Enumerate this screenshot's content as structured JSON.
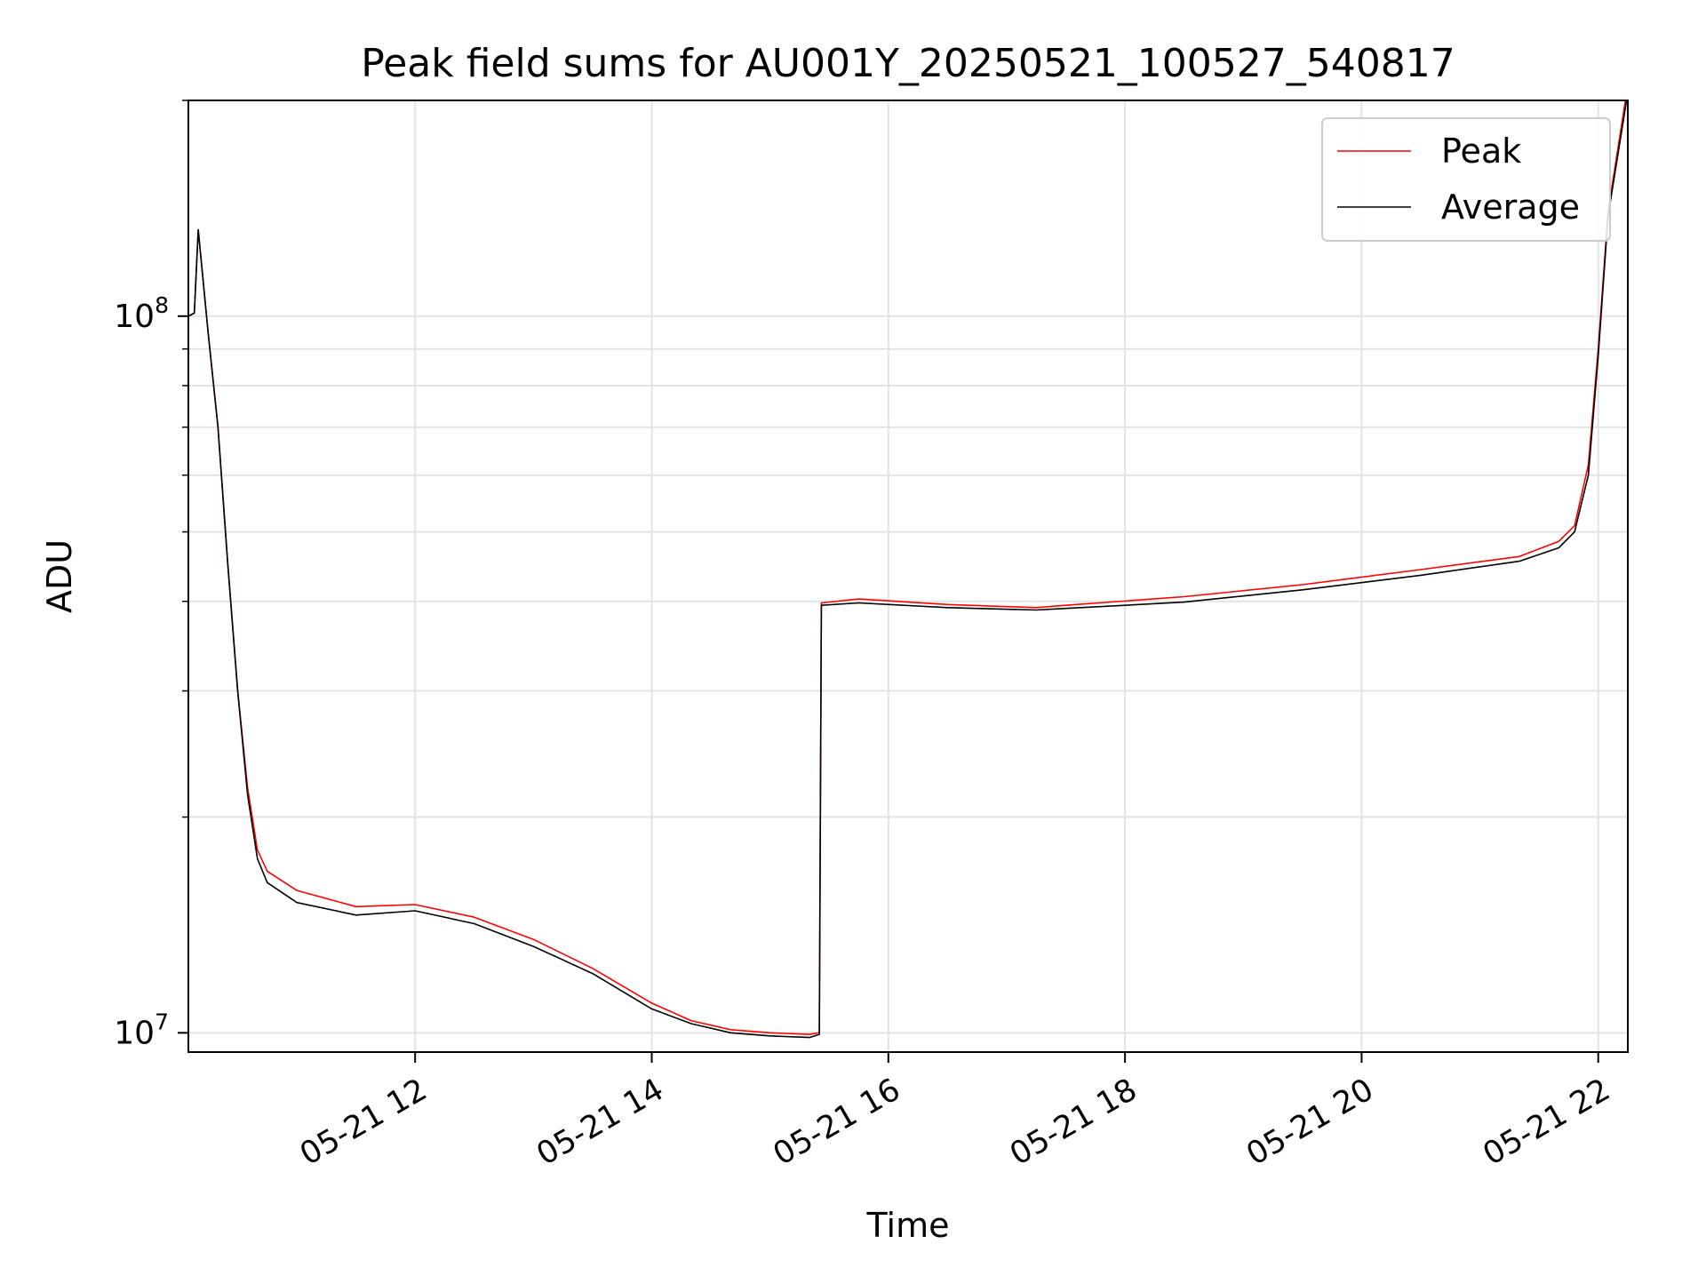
{
  "chart_data": {
    "type": "line",
    "title": "Peak field sums for AU001Y_20250521_100527_540817",
    "xlabel": "Time",
    "ylabel": "ADU",
    "y_scale": "log",
    "ylim": [
      9400000,
      200000000
    ],
    "xlim": [
      "2025-05-21 10:05",
      "2025-05-21 22:15"
    ],
    "x_ticks": [
      {
        "value": "2025-05-21 12:00",
        "label": "05-21 12"
      },
      {
        "value": "2025-05-21 14:00",
        "label": "05-21 14"
      },
      {
        "value": "2025-05-21 16:00",
        "label": "05-21 16"
      },
      {
        "value": "2025-05-21 18:00",
        "label": "05-21 18"
      },
      {
        "value": "2025-05-21 20:00",
        "label": "05-21 20"
      },
      {
        "value": "2025-05-21 22:00",
        "label": "05-21 22"
      }
    ],
    "y_ticks": [
      {
        "value": 10000000,
        "label_base": "10",
        "label_exp": "7"
      },
      {
        "value": 100000000,
        "label_base": "10",
        "label_exp": "8"
      }
    ],
    "grid": true,
    "legend_position": "upper right",
    "series": [
      {
        "name": "Peak",
        "color": "#ff0000",
        "x": [
          "2025-05-21 10:05",
          "2025-05-21 10:08",
          "2025-05-21 10:10",
          "2025-05-21 10:15",
          "2025-05-21 10:20",
          "2025-05-21 10:25",
          "2025-05-21 10:30",
          "2025-05-21 10:35",
          "2025-05-21 10:40",
          "2025-05-21 10:45",
          "2025-05-21 11:00",
          "2025-05-21 11:30",
          "2025-05-21 12:00",
          "2025-05-21 12:30",
          "2025-05-21 13:00",
          "2025-05-21 13:30",
          "2025-05-21 14:00",
          "2025-05-21 14:20",
          "2025-05-21 14:40",
          "2025-05-21 15:00",
          "2025-05-21 15:20",
          "2025-05-21 15:25",
          "2025-05-21 15:26",
          "2025-05-21 15:45",
          "2025-05-21 16:30",
          "2025-05-21 17:15",
          "2025-05-21 17:30",
          "2025-05-21 18:30",
          "2025-05-21 19:30",
          "2025-05-21 20:30",
          "2025-05-21 21:20",
          "2025-05-21 21:40",
          "2025-05-21 21:48",
          "2025-05-21 21:55",
          "2025-05-21 22:00",
          "2025-05-21 22:05",
          "2025-05-21 22:15"
        ],
        "y": [
          100000000,
          101000000,
          132000000,
          95000000,
          70000000,
          45000000,
          30000000,
          22000000,
          18000000,
          16800000,
          15800000,
          15000000,
          15100000,
          14500000,
          13500000,
          12300000,
          11000000,
          10400000,
          10100000,
          10000000,
          9950000,
          10000000,
          39800000,
          40300000,
          39600000,
          39200000,
          39500000,
          40600000,
          42200000,
          44300000,
          46200000,
          48500000,
          51000000,
          62000000,
          90000000,
          140000000,
          210000000
        ]
      },
      {
        "name": "Average",
        "color": "#000000",
        "x": [
          "2025-05-21 10:05",
          "2025-05-21 10:08",
          "2025-05-21 10:10",
          "2025-05-21 10:15",
          "2025-05-21 10:20",
          "2025-05-21 10:25",
          "2025-05-21 10:30",
          "2025-05-21 10:35",
          "2025-05-21 10:40",
          "2025-05-21 10:45",
          "2025-05-21 11:00",
          "2025-05-21 11:30",
          "2025-05-21 12:00",
          "2025-05-21 12:30",
          "2025-05-21 13:00",
          "2025-05-21 13:30",
          "2025-05-21 14:00",
          "2025-05-21 14:20",
          "2025-05-21 14:40",
          "2025-05-21 15:00",
          "2025-05-21 15:20",
          "2025-05-21 15:25",
          "2025-05-21 15:26",
          "2025-05-21 15:45",
          "2025-05-21 16:30",
          "2025-05-21 17:15",
          "2025-05-21 17:30",
          "2025-05-21 18:30",
          "2025-05-21 19:30",
          "2025-05-21 20:30",
          "2025-05-21 21:20",
          "2025-05-21 21:40",
          "2025-05-21 21:48",
          "2025-05-21 21:55",
          "2025-05-21 22:00",
          "2025-05-21 22:05",
          "2025-05-21 22:15"
        ],
        "y": [
          100000000,
          101000000,
          132000000,
          95000000,
          70000000,
          45000000,
          30000000,
          21500000,
          17500000,
          16200000,
          15200000,
          14600000,
          14800000,
          14200000,
          13200000,
          12100000,
          10800000,
          10300000,
          10000000,
          9900000,
          9850000,
          9950000,
          39500000,
          39800000,
          39200000,
          38900000,
          39100000,
          39900000,
          41500000,
          43500000,
          45500000,
          47500000,
          50000000,
          60000000,
          88000000,
          138000000,
          205000000
        ]
      }
    ]
  }
}
